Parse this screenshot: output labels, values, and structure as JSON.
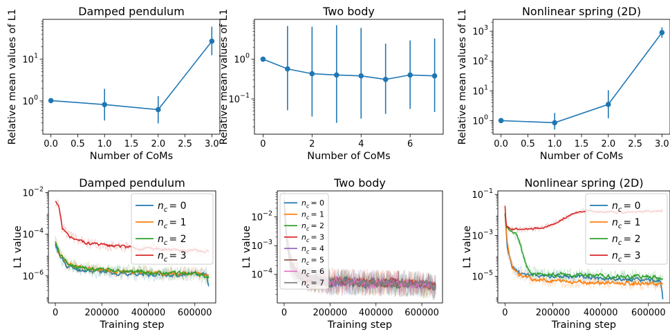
{
  "figure": {
    "colors": {
      "blue": "#1f77b4",
      "orange": "#ff7f0e",
      "green": "#2ca02c",
      "red": "#d62728",
      "purple": "#9467bd",
      "brown": "#8c564b",
      "pink": "#e377c2",
      "gray": "#7f7f7f"
    }
  },
  "chart_data": [
    {
      "id": "p1",
      "type": "line",
      "title": "Damped pendulum",
      "xlabel": "Number of CoMs",
      "ylabel": "Relative mean values of L1",
      "yscale": "log",
      "xlim": [
        -0.15,
        3.15
      ],
      "ylim": [
        0.16,
        90
      ],
      "xticks": [
        0,
        0.5,
        1,
        1.5,
        2,
        2.5,
        3
      ],
      "xticklabels": [
        "0.0",
        "0.5",
        "1.0",
        "1.5",
        "2.0",
        "2.5",
        "3.0"
      ],
      "yticks": [
        {
          "v": 1,
          "base": "10",
          "exp": "0"
        },
        {
          "v": 10,
          "base": "10",
          "exp": "1"
        }
      ],
      "series": [
        {
          "color": "#1f77b4",
          "x": [
            0,
            1,
            2,
            3
          ],
          "y": [
            1.02,
            0.82,
            0.62,
            27
          ],
          "err_low": [
            1.02,
            0.34,
            0.29,
            12.5
          ],
          "err_high": [
            1.02,
            1.95,
            1.3,
            60
          ]
        }
      ]
    },
    {
      "id": "p2",
      "type": "line",
      "title": "Two body",
      "xlabel": "Number of CoMs",
      "ylabel": "Relative mean values of L1",
      "yscale": "log",
      "xlim": [
        -0.35,
        7.35
      ],
      "ylim": [
        0.013,
        10
      ],
      "xticks": [
        0,
        2,
        4,
        6
      ],
      "xticklabels": [
        "0",
        "2",
        "4",
        "6"
      ],
      "yticks": [
        {
          "v": 0.1,
          "base": "10",
          "exp": "−1"
        },
        {
          "v": 1,
          "base": "10",
          "exp": "0"
        }
      ],
      "series": [
        {
          "color": "#1f77b4",
          "x": [
            0,
            1,
            2,
            3,
            4,
            5,
            6,
            7
          ],
          "y": [
            1.0,
            0.57,
            0.43,
            0.4,
            0.38,
            0.31,
            0.4,
            0.38
          ],
          "err_low": [
            1.0,
            0.052,
            0.036,
            0.025,
            0.032,
            0.042,
            0.056,
            0.047
          ],
          "err_high": [
            1.0,
            6.8,
            6.5,
            7.1,
            6.1,
            2.45,
            2.95,
            3.3
          ]
        }
      ]
    },
    {
      "id": "p3",
      "type": "line",
      "title": "Nonlinear spring (2D)",
      "xlabel": "Number of CoMs",
      "ylabel": "Relative mean values of L1",
      "yscale": "log",
      "xlim": [
        -0.15,
        3.15
      ],
      "ylim": [
        0.35,
        2500
      ],
      "xticks": [
        0,
        0.5,
        1,
        1.5,
        2,
        2.5,
        3
      ],
      "xticklabels": [
        "0.0",
        "0.5",
        "1.0",
        "1.5",
        "2.0",
        "2.5",
        "3.0"
      ],
      "yticks": [
        {
          "v": 1,
          "base": "10",
          "exp": "0"
        },
        {
          "v": 10,
          "base": "10",
          "exp": "1"
        },
        {
          "v": 100,
          "base": "10",
          "exp": "2"
        },
        {
          "v": 1000,
          "base": "10",
          "exp": "3"
        }
      ],
      "series": [
        {
          "color": "#1f77b4",
          "x": [
            0,
            1,
            2,
            3
          ],
          "y": [
            1.0,
            0.85,
            3.5,
            900
          ],
          "err_low": [
            1.0,
            0.5,
            1.2,
            600
          ],
          "err_high": [
            1.0,
            1.8,
            10.5,
            1350
          ]
        }
      ]
    },
    {
      "id": "p4",
      "type": "line",
      "title": "Damped pendulum",
      "xlabel": "Training step",
      "ylabel": "L1 value",
      "yscale": "log",
      "xlim": [
        -30000,
        690000
      ],
      "ylim": [
        5e-08,
        0.012
      ],
      "xticks": [
        0,
        200000,
        400000,
        600000
      ],
      "xticklabels": [
        "0",
        "200000",
        "400000",
        "600000"
      ],
      "yticks": [
        {
          "v": 1e-06,
          "base": "10",
          "exp": "−6"
        },
        {
          "v": 0.0001,
          "base": "10",
          "exp": "−4"
        },
        {
          "v": 0.01,
          "base": "10",
          "exp": "−2"
        }
      ],
      "legend": {
        "loc": "upper-right",
        "labels": [
          [
            "n",
            "c",
            "= 0"
          ],
          [
            "n",
            "c",
            "= 1"
          ],
          [
            "n",
            "c",
            "= 2"
          ],
          [
            "n",
            "c",
            "= 3"
          ]
        ]
      },
      "series": [
        {
          "color": "#1f77b4",
          "seed": 11,
          "noise": 0.13,
          "x": [
            0,
            20000,
            50000,
            100000,
            200000,
            300000,
            400000,
            500000,
            600000,
            650000,
            660000
          ],
          "y": [
            3e-05,
            8e-06,
            3e-06,
            2e-06,
            1.6e-06,
            1.3e-06,
            1.2e-06,
            1.1e-06,
            1.2e-06,
            1.3e-06,
            3e-07
          ]
        },
        {
          "color": "#ff7f0e",
          "seed": 23,
          "noise": 0.13,
          "x": [
            0,
            20000,
            50000,
            100000,
            200000,
            300000,
            400000,
            500000,
            600000,
            660000
          ],
          "y": [
            4e-05,
            1e-05,
            4e-06,
            2.5e-06,
            2e-06,
            1.6e-06,
            1.5e-06,
            1.3e-06,
            1.4e-06,
            1.1e-06
          ]
        },
        {
          "color": "#2ca02c",
          "seed": 37,
          "noise": 0.13,
          "x": [
            0,
            20000,
            50000,
            100000,
            200000,
            300000,
            400000,
            500000,
            600000,
            660000
          ],
          "y": [
            4e-05,
            1e-05,
            4e-06,
            2.5e-06,
            2e-06,
            1.8e-06,
            1.5e-06,
            1.3e-06,
            1.3e-06,
            8e-07
          ]
        },
        {
          "color": "#d62728",
          "seed": 51,
          "noise": 0.1,
          "x": [
            0,
            15000,
            30000,
            60000,
            100000,
            150000,
            200000,
            300000,
            400000,
            500000,
            600000,
            660000
          ],
          "y": [
            0.004,
            0.002,
            0.0002,
            8e-05,
            5e-05,
            3.5e-05,
            3e-05,
            2.5e-05,
            2e-05,
            1.8e-05,
            1.6e-05,
            1.5e-05
          ]
        }
      ]
    },
    {
      "id": "p5",
      "type": "line",
      "title": "Two body",
      "xlabel": "Training step",
      "ylabel": "L1 value",
      "yscale": "log",
      "xlim": [
        -30000,
        690000
      ],
      "ylim": [
        1e-05,
        0.08
      ],
      "xticks": [
        0,
        200000,
        400000,
        600000
      ],
      "xticklabels": [
        "0",
        "200000",
        "400000",
        "600000"
      ],
      "yticks": [
        {
          "v": 0.0001,
          "base": "10",
          "exp": "−4"
        },
        {
          "v": 0.001,
          "base": "10",
          "exp": "−3"
        },
        {
          "v": 0.01,
          "base": "10",
          "exp": "−2"
        }
      ],
      "legend": {
        "loc": "upper-left",
        "labels": [
          [
            "n",
            "c",
            "= 0"
          ],
          [
            "n",
            "c",
            "= 1"
          ],
          [
            "n",
            "c",
            "= 2"
          ],
          [
            "n",
            "c",
            "= 3"
          ],
          [
            "n",
            "c",
            "= 4"
          ],
          [
            "n",
            "c",
            "= 5"
          ],
          [
            "n",
            "c",
            "= 6"
          ],
          [
            "n",
            "c",
            "= 7"
          ]
        ]
      },
      "series": [
        {
          "color": "#1f77b4",
          "seed": 3,
          "noise": 0.18,
          "x": [
            0,
            10000,
            30000,
            60000,
            100000,
            200000,
            400000,
            600000,
            660000
          ],
          "y": [
            0.03,
            0.002,
            0.0002,
            0.0001,
            7e-05,
            5.5e-05,
            5e-05,
            4.5e-05,
            3.5e-05
          ]
        },
        {
          "color": "#ff7f0e",
          "seed": 5,
          "noise": 0.18,
          "x": [
            0,
            10000,
            30000,
            60000,
            100000,
            200000,
            400000,
            600000,
            660000
          ],
          "y": [
            0.03,
            0.002,
            0.0002,
            0.0001,
            7e-05,
            5.5e-05,
            5e-05,
            4.5e-05,
            3.5e-05
          ]
        },
        {
          "color": "#2ca02c",
          "seed": 7,
          "noise": 0.18,
          "x": [
            0,
            10000,
            30000,
            60000,
            100000,
            200000,
            400000,
            600000,
            660000
          ],
          "y": [
            0.03,
            0.002,
            0.0002,
            0.0001,
            7e-05,
            5.5e-05,
            5e-05,
            4.5e-05,
            3.5e-05
          ]
        },
        {
          "color": "#d62728",
          "seed": 9,
          "noise": 0.18,
          "x": [
            0,
            10000,
            30000,
            60000,
            100000,
            200000,
            400000,
            600000,
            660000
          ],
          "y": [
            0.03,
            0.002,
            0.0002,
            0.0001,
            7e-05,
            5.5e-05,
            5e-05,
            4.5e-05,
            3.5e-05
          ]
        },
        {
          "color": "#9467bd",
          "seed": 13,
          "noise": 0.18,
          "x": [
            0,
            10000,
            30000,
            60000,
            100000,
            200000,
            400000,
            600000,
            660000
          ],
          "y": [
            0.03,
            0.002,
            0.0002,
            0.0001,
            7e-05,
            5.5e-05,
            5e-05,
            4.5e-05,
            3.5e-05
          ]
        },
        {
          "color": "#8c564b",
          "seed": 17,
          "noise": 0.18,
          "x": [
            0,
            10000,
            30000,
            60000,
            100000,
            200000,
            400000,
            600000,
            660000
          ],
          "y": [
            0.03,
            0.002,
            0.0002,
            0.0001,
            7e-05,
            5.5e-05,
            5e-05,
            4.5e-05,
            3.5e-05
          ]
        },
        {
          "color": "#e377c2",
          "seed": 19,
          "noise": 0.18,
          "x": [
            0,
            10000,
            30000,
            60000,
            100000,
            200000,
            400000,
            600000,
            660000
          ],
          "y": [
            0.03,
            0.002,
            0.0002,
            0.0001,
            7e-05,
            5.5e-05,
            5e-05,
            4.5e-05,
            3.5e-05
          ]
        },
        {
          "color": "#7f7f7f",
          "seed": 29,
          "noise": 0.18,
          "x": [
            0,
            10000,
            30000,
            60000,
            100000,
            200000,
            400000,
            600000,
            660000
          ],
          "y": [
            0.03,
            0.002,
            0.0002,
            0.0001,
            7e-05,
            5.5e-05,
            5e-05,
            4.5e-05,
            3.5e-05
          ]
        }
      ]
    },
    {
      "id": "p6",
      "type": "line",
      "title": "Nonlinear spring (2D)",
      "xlabel": "Training step",
      "ylabel": "L1 value",
      "yscale": "log",
      "xlim": [
        -30000,
        690000
      ],
      "ylim": [
        5e-07,
        0.15
      ],
      "xticks": [
        0,
        200000,
        400000,
        600000
      ],
      "xticklabels": [
        "0",
        "200000",
        "400000",
        "600000"
      ],
      "yticks": [
        {
          "v": 1e-05,
          "base": "10",
          "exp": "−5"
        },
        {
          "v": 0.001,
          "base": "10",
          "exp": "−3"
        },
        {
          "v": 0.1,
          "base": "10",
          "exp": "−1"
        }
      ],
      "legend": {
        "loc": "upper-right",
        "labels": [
          [
            "n",
            "c",
            "= 0"
          ],
          [
            "n",
            "c",
            "= 1"
          ],
          [
            "n",
            "c",
            "= 2"
          ],
          [
            "n",
            "c",
            "= 3"
          ]
        ]
      },
      "series": [
        {
          "color": "#1f77b4",
          "seed": 41,
          "noise": 0.13,
          "x": [
            0,
            10000,
            30000,
            60000,
            100000,
            200000,
            300000,
            400000,
            500000,
            600000,
            650000,
            660000
          ],
          "y": [
            0.01,
            0.0002,
            3e-05,
            1.5e-05,
            1.2e-05,
            1e-05,
            9e-06,
            8e-06,
            7e-06,
            6e-06,
            6e-06,
            8e-07
          ]
        },
        {
          "color": "#ff7f0e",
          "seed": 43,
          "noise": 0.13,
          "x": [
            0,
            10000,
            30000,
            60000,
            100000,
            200000,
            300000,
            400000,
            500000,
            600000,
            660000
          ],
          "y": [
            0.01,
            0.0003,
            3e-05,
            1.2e-05,
            8e-06,
            6e-06,
            5.5e-06,
            5e-06,
            4.5e-06,
            4.5e-06,
            4e-06
          ]
        },
        {
          "color": "#2ca02c",
          "seed": 47,
          "noise": 0.13,
          "x": [
            0,
            5000,
            15000,
            30000,
            50000,
            70000,
            90000,
            110000,
            200000,
            300000,
            400000,
            500000,
            600000,
            660000
          ],
          "y": [
            0.01,
            0.003,
            0.002,
            0.0015,
            0.001,
            0.0002,
            3e-05,
            1.5e-05,
            1.2e-05,
            1.2e-05,
            1.1e-05,
            1e-05,
            1e-05,
            8e-06
          ]
        },
        {
          "color": "#d62728",
          "seed": 53,
          "noise": 0.06,
          "x": [
            0,
            5000,
            15000,
            30000,
            100000,
            150000,
            200000,
            250000,
            300000,
            330000,
            400000,
            500000,
            600000,
            660000
          ],
          "y": [
            0.03,
            0.003,
            0.0025,
            0.002,
            0.002,
            0.0023,
            0.0035,
            0.007,
            0.013,
            0.016,
            0.014,
            0.014,
            0.015,
            0.016
          ]
        }
      ]
    }
  ]
}
